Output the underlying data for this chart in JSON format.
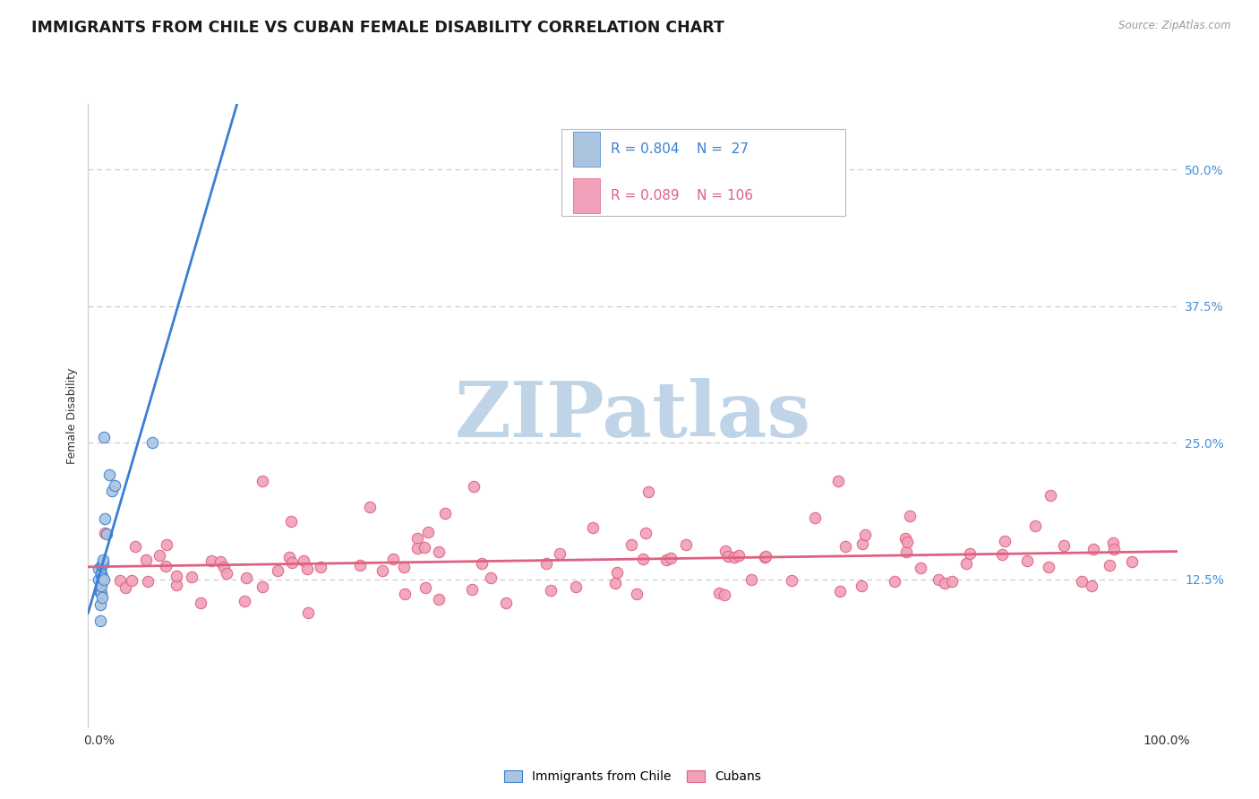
{
  "title": "IMMIGRANTS FROM CHILE VS CUBAN FEMALE DISABILITY CORRELATION CHART",
  "source_text": "Source: ZipAtlas.com",
  "ylabel": "Female Disability",
  "watermark": "ZIPatlas",
  "legend_label1": "Immigrants from Chile",
  "legend_label2": "Cubans",
  "chile_color": "#aac4e0",
  "cuban_color": "#f0a0b8",
  "chile_line_color": "#3a7fd4",
  "cuban_line_color": "#e06080",
  "grid_color": "#c8c8c8",
  "background_color": "#ffffff",
  "watermark_color": "#c0d4e8",
  "title_fontsize": 12.5,
  "axis_label_fontsize": 9,
  "tick_fontsize": 10,
  "legend_fontsize": 11,
  "ytick_color": "#4a90d9",
  "yticks": [
    0.125,
    0.25,
    0.375,
    0.5
  ],
  "ytick_labels": [
    "12.5%",
    "25.0%",
    "37.5%",
    "50.0%"
  ]
}
